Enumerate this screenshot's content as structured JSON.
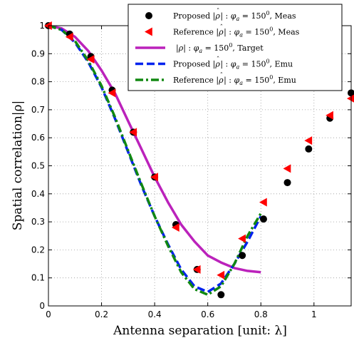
{
  "chart_data": {
    "type": "line",
    "xlabel": "Antenna separation [unit: λ]",
    "ylabel": "Spatial correlation|ρ|",
    "xlim": [
      0,
      1.14
    ],
    "ylim": [
      0,
      1
    ],
    "xticks": [
      0,
      0.2,
      0.4,
      0.6,
      0.8,
      1
    ],
    "xtick_labels": [
      "0",
      "0.2",
      "0.4",
      "0.6",
      "0.8",
      "1"
    ],
    "yticks": [
      0,
      0.1,
      0.2,
      0.3,
      0.4,
      0.5,
      0.6,
      0.7,
      0.8,
      0.9,
      1
    ],
    "ytick_labels": [
      "0",
      "0.1",
      "0.2",
      "0.3",
      "0.4",
      "0.5",
      "0.6",
      "0.7",
      "0.8",
      "0.9",
      "1"
    ],
    "grid": true,
    "legend_position": "top-right",
    "series": [
      {
        "name": "Proposed |ρ̂| : φa = 150⁰, Meas",
        "kind": "marker-circle",
        "color": "#000000",
        "x": [
          0,
          0.08,
          0.16,
          0.24,
          0.32,
          0.4,
          0.48,
          0.56,
          0.65,
          0.73,
          0.81,
          0.9,
          0.98,
          1.06,
          1.14
        ],
        "y": [
          1.0,
          0.97,
          0.89,
          0.77,
          0.62,
          0.46,
          0.29,
          0.13,
          0.04,
          0.18,
          0.31,
          0.44,
          0.56,
          0.67,
          0.76
        ]
      },
      {
        "name": "Reference |ρ̂| : φa = 150⁰, Meas",
        "kind": "marker-triangle-left",
        "color": "#ff0000",
        "x": [
          0,
          0.08,
          0.16,
          0.24,
          0.32,
          0.4,
          0.48,
          0.56,
          0.65,
          0.73,
          0.81,
          0.9,
          0.98,
          1.06,
          1.14
        ],
        "y": [
          1.0,
          0.96,
          0.88,
          0.76,
          0.62,
          0.46,
          0.28,
          0.13,
          0.11,
          0.24,
          0.37,
          0.49,
          0.59,
          0.68,
          0.74
        ]
      },
      {
        "name": "|ρ| : φa = 150⁰, Target",
        "kind": "line-solid",
        "color": "#bb22bb",
        "x": [
          0,
          0.05,
          0.1,
          0.15,
          0.2,
          0.25,
          0.3,
          0.35,
          0.4,
          0.45,
          0.5,
          0.55,
          0.6,
          0.65,
          0.7,
          0.75,
          0.8
        ],
        "y": [
          1.0,
          0.99,
          0.96,
          0.91,
          0.84,
          0.76,
          0.66,
          0.56,
          0.46,
          0.37,
          0.29,
          0.23,
          0.18,
          0.155,
          0.135,
          0.125,
          0.12
        ]
      },
      {
        "name": "Proposed |ρ̂| : φa = 150⁰, Emu",
        "kind": "line-dashed",
        "color": "#0022ee",
        "x": [
          0,
          0.05,
          0.1,
          0.15,
          0.2,
          0.25,
          0.3,
          0.35,
          0.4,
          0.45,
          0.5,
          0.55,
          0.6,
          0.65,
          0.7,
          0.75,
          0.8
        ],
        "y": [
          1.0,
          0.985,
          0.94,
          0.87,
          0.78,
          0.67,
          0.55,
          0.43,
          0.32,
          0.22,
          0.13,
          0.07,
          0.05,
          0.08,
          0.15,
          0.23,
          0.32
        ]
      },
      {
        "name": "Reference |ρ̂| : φa = 150⁰, Emu",
        "kind": "line-dashdot",
        "color": "#118811",
        "x": [
          0,
          0.05,
          0.1,
          0.15,
          0.2,
          0.25,
          0.3,
          0.35,
          0.4,
          0.45,
          0.5,
          0.55,
          0.6,
          0.65,
          0.7,
          0.75,
          0.8
        ],
        "y": [
          1.0,
          0.985,
          0.945,
          0.875,
          0.785,
          0.675,
          0.555,
          0.435,
          0.32,
          0.215,
          0.12,
          0.06,
          0.04,
          0.07,
          0.15,
          0.25,
          0.33
        ]
      }
    ]
  },
  "legend": {
    "items": [
      {
        "prefix": "Proposed ",
        "tail": " : ",
        "phi_value": " = 150",
        "suffix": ", Meas",
        "hat": true
      },
      {
        "prefix": "Reference ",
        "tail": " : ",
        "phi_value": " = 150",
        "suffix": ", Meas",
        "hat": true
      },
      {
        "prefix": "",
        "tail": " : ",
        "phi_value": " = 150",
        "suffix": ", Target",
        "hat": false
      },
      {
        "prefix": "Proposed ",
        "tail": " : ",
        "phi_value": " = 150",
        "suffix": ", Emu",
        "hat": true
      },
      {
        "prefix": "Reference ",
        "tail": " : ",
        "phi_value": " = 150",
        "suffix": ", Emu",
        "hat": true
      }
    ],
    "symbol_rho": "ρ",
    "symbol_hat": "ˆ",
    "symbol_phi": "φ",
    "subscript_a": "a",
    "superscript_0": "0",
    "abs_bar": "|"
  }
}
